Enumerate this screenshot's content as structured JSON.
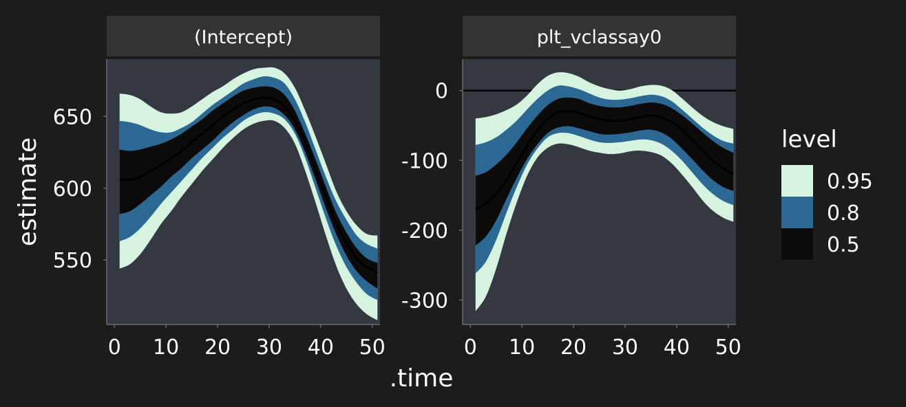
{
  "chart_data": {
    "type": "area",
    "xlabel": ".time",
    "ylabel": "estimate",
    "legend": {
      "title": "level",
      "position": "right",
      "entries": [
        {
          "label": "0.95",
          "level": 0.95,
          "color": "#d6f3df"
        },
        {
          "label": "0.8",
          "level": 0.8,
          "color": "#2b6893"
        },
        {
          "label": "0.5",
          "level": 0.5,
          "color": "#0d0a0a"
        }
      ]
    },
    "colors": {
      "page_background": "#1c1c1c",
      "panel_background": "#343840",
      "strip_background": "#333333",
      "line": "#000000",
      "text": "#ffffff"
    },
    "panels": [
      {
        "strip": "(Intercept)",
        "xlim": [
          -1.5,
          51.5
        ],
        "ylim": [
          505,
          690
        ],
        "xticks": [
          0,
          10,
          20,
          30,
          40,
          50
        ],
        "xtick_labels": [
          "0",
          "10",
          "20",
          "30",
          "40",
          "50"
        ],
        "yticks": [
          550,
          600,
          650
        ],
        "ytick_labels": [
          "550",
          "600",
          "650"
        ],
        "zero_line": false,
        "x": [
          1,
          3,
          5,
          7,
          9,
          11,
          13,
          15,
          17,
          19,
          21,
          23,
          25,
          27,
          29,
          31,
          33,
          35,
          37,
          39,
          41,
          43,
          45,
          47,
          49,
          51
        ],
        "median": [
          606,
          606,
          608,
          612,
          616,
          621,
          626,
          632,
          638,
          644,
          650,
          655,
          659,
          662,
          663,
          662,
          657,
          647,
          632,
          613,
          594,
          576,
          562,
          551,
          545,
          541
        ],
        "bands": {
          "0.95": {
            "lower": [
              544,
              547,
              554,
              564,
              575,
              584,
              594,
              603,
              612,
              620,
              628,
              635,
              641,
              645,
              647,
              647,
              642,
              631,
              612,
              590,
              567,
              546,
              530,
              519,
              512,
              508
            ],
            "upper": [
              666,
              665,
              662,
              657,
              653,
              652,
              653,
              657,
              662,
              667,
              671,
              676,
              680,
              683,
              684,
              684,
              680,
              670,
              654,
              636,
              617,
              598,
              584,
              574,
              568,
              567
            ]
          },
          "0.8": {
            "lower": [
              563,
              566,
              572,
              580,
              589,
              597,
              605,
              613,
              621,
              628,
              635,
              641,
              647,
              651,
              653,
              652,
              648,
              638,
              621,
              600,
              579,
              560,
              545,
              534,
              526,
              522
            ],
            "upper": [
              647,
              646,
              644,
              641,
              639,
              639,
              642,
              646,
              652,
              658,
              663,
              668,
              673,
              676,
              678,
              677,
              673,
              662,
              646,
              627,
              608,
              591,
              578,
              567,
              561,
              558
            ]
          },
          "0.5": {
            "lower": [
              582,
              584,
              589,
              595,
              601,
              608,
              614,
              621,
              627,
              633,
              640,
              646,
              651,
              655,
              657,
              656,
              651,
              641,
              625,
              606,
              586,
              568,
              553,
              542,
              535,
              530
            ],
            "upper": [
              627,
              626,
              627,
              629,
              631,
              634,
              638,
              643,
              648,
              654,
              659,
              664,
              668,
              670,
              671,
              670,
              665,
              654,
              638,
              620,
              601,
              583,
              569,
              558,
              551,
              548
            ]
          }
        }
      },
      {
        "strip": "plt_vclassay0",
        "xlim": [
          -1.5,
          51.5
        ],
        "ylim": [
          -335,
          45
        ],
        "xticks": [
          0,
          10,
          20,
          30,
          40,
          50
        ],
        "xtick_labels": [
          "0",
          "10",
          "20",
          "30",
          "40",
          "50"
        ],
        "yticks": [
          -300,
          -200,
          -100,
          0
        ],
        "ytick_labels": [
          "-300",
          "-200",
          "-100",
          "0"
        ],
        "zero_line": true,
        "x": [
          1,
          3,
          5,
          7,
          9,
          11,
          13,
          15,
          17,
          19,
          21,
          23,
          25,
          27,
          29,
          31,
          33,
          35,
          37,
          39,
          41,
          43,
          45,
          47,
          49,
          51
        ],
        "median": [
          -170,
          -162,
          -148,
          -128,
          -104,
          -79,
          -57,
          -40,
          -31,
          -29,
          -32,
          -37,
          -41,
          -43,
          -43,
          -41,
          -38,
          -36,
          -38,
          -45,
          -56,
          -70,
          -85,
          -100,
          -111,
          -120
        ],
        "bands": {
          "0.95": {
            "lower": [
              -316,
              -295,
              -255,
              -205,
              -160,
              -122,
              -96,
              -82,
              -76,
              -77,
              -81,
              -86,
              -89,
              -91,
              -90,
              -87,
              -86,
              -88,
              -93,
              -104,
              -120,
              -138,
              -157,
              -172,
              -182,
              -188
            ],
            "upper": [
              -40,
              -38,
              -34,
              -28,
              -20,
              -7,
              9,
              21,
              26,
              25,
              20,
              12,
              6,
              2,
              0,
              2,
              6,
              8,
              7,
              1,
              -11,
              -24,
              -36,
              -45,
              -51,
              -55
            ]
          },
          "0.8": {
            "lower": [
              -262,
              -245,
              -214,
              -175,
              -138,
              -106,
              -83,
              -67,
              -61,
              -61,
              -65,
              -70,
              -74,
              -75,
              -74,
              -72,
              -70,
              -71,
              -76,
              -86,
              -100,
              -117,
              -134,
              -148,
              -158,
              -164
            ],
            "upper": [
              -78,
              -74,
              -67,
              -56,
              -43,
              -27,
              -12,
              0,
              7,
              6,
              2,
              -4,
              -10,
              -13,
              -13,
              -11,
              -8,
              -6,
              -8,
              -15,
              -27,
              -40,
              -53,
              -64,
              -72,
              -76
            ]
          },
          "0.5": {
            "lower": [
              -222,
              -209,
              -186,
              -155,
              -125,
              -98,
              -77,
              -61,
              -53,
              -51,
              -54,
              -58,
              -62,
              -63,
              -62,
              -60,
              -57,
              -56,
              -60,
              -69,
              -83,
              -98,
              -114,
              -128,
              -138,
              -144
            ],
            "upper": [
              -122,
              -117,
              -106,
              -92,
              -74,
              -54,
              -36,
              -21,
              -12,
              -10,
              -12,
              -18,
              -22,
              -24,
              -24,
              -22,
              -19,
              -17,
              -19,
              -25,
              -35,
              -47,
              -60,
              -72,
              -82,
              -89
            ]
          }
        }
      }
    ]
  }
}
